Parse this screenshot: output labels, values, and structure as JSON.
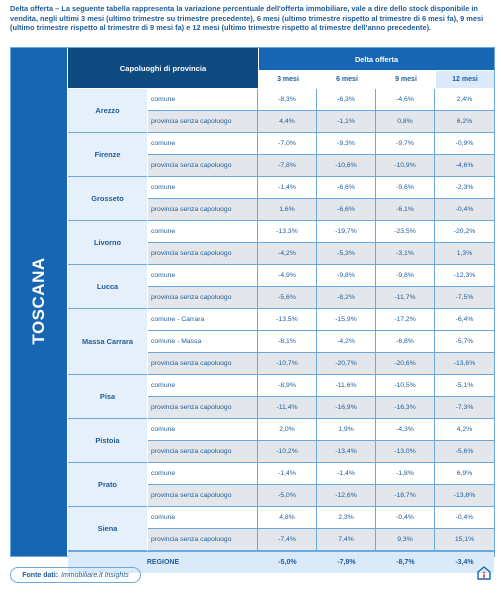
{
  "intro": "Delta offerta – La seguente tabella rappresenta la variazione percentuale dell'offerta immobiliare, vale a dire dello stock disponibile in vendita, negli ultimi 3 mesi (ultimo trimestre su trimestre precedente), 6 mesi (ultimo trimestre rispetto al trimestre di 6 mesi fa), 9 mesi (ultimo trimestre rispetto al trimestre di 9 mesi fa) e 12 mesi (ultimo trimestre rispetto al trimestre dell'anno precedente).",
  "region": "TOSCANA",
  "header": {
    "province_col": "Capoluoghi di provincia",
    "delta": "Delta offerta",
    "periods": [
      "3 mesi",
      "6 mesi",
      "9 mesi",
      "12 mesi"
    ]
  },
  "cities": [
    {
      "name": "Arezzo",
      "rows": [
        {
          "type": "comune",
          "values": [
            "-8,3%",
            "-6,3%",
            "-4,6%",
            "2,4%"
          ]
        },
        {
          "type": "provincia senza capoluogo",
          "values": [
            "4,4%",
            "-1,1%",
            "0,8%",
            "6,2%"
          ]
        }
      ]
    },
    {
      "name": "Firenze",
      "rows": [
        {
          "type": "comune",
          "values": [
            "-7,0%",
            "-9,3%",
            "-9,7%",
            "-0,9%"
          ]
        },
        {
          "type": "provincia senza capoluogo",
          "values": [
            "-7,8%",
            "-10,6%",
            "-10,9%",
            "-4,6%"
          ]
        }
      ]
    },
    {
      "name": "Grosseto",
      "rows": [
        {
          "type": "comune",
          "values": [
            "-1,4%",
            "-6,6%",
            "-9,6%",
            "-2,3%"
          ]
        },
        {
          "type": "provincia senza capoluogo",
          "values": [
            "1,6%",
            "-6,6%",
            "-6,1%",
            "-0,4%"
          ]
        }
      ]
    },
    {
      "name": "Livorno",
      "rows": [
        {
          "type": "comune",
          "values": [
            "-13,3%",
            "-19,7%",
            "-23,5%",
            "-20,2%"
          ]
        },
        {
          "type": "provincia senza capoluogo",
          "values": [
            "-4,2%",
            "-5,3%",
            "-3,1%",
            "1,3%"
          ]
        }
      ]
    },
    {
      "name": "Lucca",
      "rows": [
        {
          "type": "comune",
          "values": [
            "-4,9%",
            "-9,8%",
            "-9,8%",
            "-12,3%"
          ]
        },
        {
          "type": "provincia senza capoluogo",
          "values": [
            "-5,6%",
            "-8,2%",
            "-11,7%",
            "-7,5%"
          ]
        }
      ]
    },
    {
      "name": "Massa Carrara",
      "rows": [
        {
          "type": "comune - Carrara",
          "values": [
            "-13,5%",
            "-15,9%",
            "-17,2%",
            "-6,4%"
          ]
        },
        {
          "type": "comune - Massa",
          "values": [
            "-8,1%",
            "-4,2%",
            "-6,8%",
            "-5,7%"
          ]
        },
        {
          "type": "provincia senza capoluogo",
          "values": [
            "-10,7%",
            "-20,7%",
            "-20,6%",
            "-13,6%"
          ]
        }
      ]
    },
    {
      "name": "Pisa",
      "rows": [
        {
          "type": "comune",
          "values": [
            "-8,9%",
            "-11,6%",
            "-10,5%",
            "-5,1%"
          ]
        },
        {
          "type": "provincia senza capoluogo",
          "values": [
            "-11,4%",
            "-16,9%",
            "-16,3%",
            "-7,3%"
          ]
        }
      ]
    },
    {
      "name": "Pistoia",
      "rows": [
        {
          "type": "comune",
          "values": [
            "2,0%",
            "1,9%",
            "-4,3%",
            "4,2%"
          ]
        },
        {
          "type": "provincia senza capoluogo",
          "values": [
            "-10,2%",
            "-13,4%",
            "-13,0%",
            "-5,6%"
          ]
        }
      ]
    },
    {
      "name": "Prato",
      "rows": [
        {
          "type": "comune",
          "values": [
            "-1,4%",
            "-1,4%",
            "-1,8%",
            "6,9%"
          ]
        },
        {
          "type": "provincia senza capoluogo",
          "values": [
            "-5,0%",
            "-12,6%",
            "-18,7%",
            "-13,8%"
          ]
        }
      ]
    },
    {
      "name": "Siena",
      "rows": [
        {
          "type": "comune",
          "values": [
            "4,8%",
            "2,3%",
            "-0,4%",
            "-0,4%"
          ]
        },
        {
          "type": "provincia senza capoluogo",
          "values": [
            "-7,4%",
            "7,4%",
            "9,3%",
            "15,1%"
          ]
        }
      ]
    }
  ],
  "regione": {
    "label": "REGIONE",
    "values": [
      "-5,0%",
      "-7,8%",
      "-8,7%",
      "-3,4%"
    ]
  },
  "source": {
    "label": "Fonte dati:",
    "value": "Immobiliare.it Insights"
  },
  "colors": {
    "accent": "#1666b3",
    "dark": "#0f4a80",
    "text": "#1f5c99",
    "alt_row": "#e3e7eb",
    "light": "#e6f0fa"
  }
}
